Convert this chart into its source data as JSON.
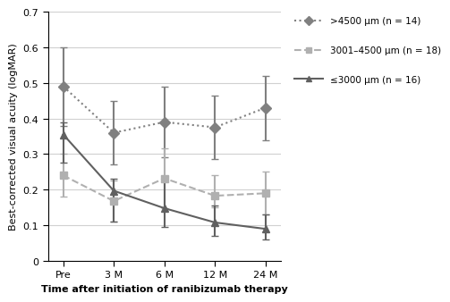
{
  "x_labels": [
    "Pre",
    "3 M",
    "6 M",
    "12 M",
    "24 M"
  ],
  "x_positions": [
    0,
    1,
    2,
    3,
    4
  ],
  "series1_label": ">4500 μm (n = 14)",
  "series1_y": [
    0.49,
    0.36,
    0.39,
    0.375,
    0.43
  ],
  "series1_yerr_low": [
    0.11,
    0.09,
    0.1,
    0.09,
    0.09
  ],
  "series1_yerr_high": [
    0.11,
    0.09,
    0.1,
    0.09,
    0.09
  ],
  "series1_color": "#808080",
  "series1_linestyle": "dotted",
  "series1_marker": "D",
  "series1_markersize": 6,
  "series2_label": "3001–4500 μm (n = 18)",
  "series2_y": [
    0.24,
    0.168,
    0.232,
    0.183,
    0.19
  ],
  "series2_yerr_low": [
    0.06,
    0.058,
    0.083,
    0.033,
    0.06
  ],
  "series2_yerr_high": [
    0.06,
    0.058,
    0.083,
    0.057,
    0.06
  ],
  "series2_color": "#b0b0b0",
  "series2_linestyle": "dashed",
  "series2_marker": "s",
  "series2_markersize": 6,
  "series3_label": "≤3000 μm (n = 16)",
  "series3_y": [
    0.355,
    0.197,
    0.148,
    0.108,
    0.09
  ],
  "series3_yerr_low": [
    0.08,
    0.086,
    0.053,
    0.038,
    0.03
  ],
  "series3_yerr_high": [
    0.035,
    0.033,
    0.088,
    0.048,
    0.04
  ],
  "series3_color": "#606060",
  "series3_linestyle": "solid",
  "series3_marker": "^",
  "series3_markersize": 6,
  "ylabel": "Best-corrected visual acuity (logMAR)",
  "xlabel": "Time after initiation of ranibizumab therapy",
  "ylim": [
    0,
    0.7
  ],
  "yticks": [
    0,
    0.1,
    0.2,
    0.3,
    0.4,
    0.5,
    0.6,
    0.7
  ],
  "background_color": "#ffffff",
  "grid_color": "#d0d0d0"
}
